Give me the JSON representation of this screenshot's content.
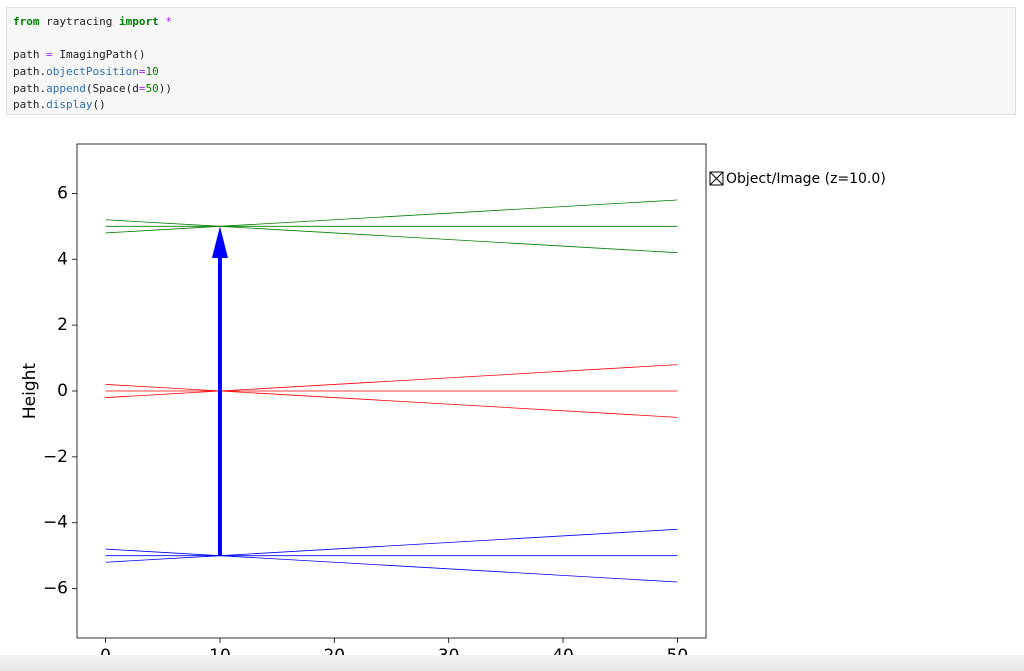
{
  "code_cell": {
    "lines": [
      [
        {
          "t": "from",
          "k": "kw"
        },
        {
          "t": " raytracing ",
          "k": "plain"
        },
        {
          "t": "import",
          "k": "kw"
        },
        {
          "t": " ",
          "k": "plain"
        },
        {
          "t": "*",
          "k": "op"
        }
      ],
      [],
      [
        {
          "t": "path ",
          "k": "plain"
        },
        {
          "t": "=",
          "k": "op"
        },
        {
          "t": " ImagingPath()",
          "k": "plain"
        }
      ],
      [
        {
          "t": "path.",
          "k": "plain"
        },
        {
          "t": "objectPosition",
          "k": "attr"
        },
        {
          "t": "=",
          "k": "op"
        },
        {
          "t": "10",
          "k": "num"
        }
      ],
      [
        {
          "t": "path.",
          "k": "plain"
        },
        {
          "t": "append",
          "k": "attr"
        },
        {
          "t": "(Space(d",
          "k": "plain"
        },
        {
          "t": "=",
          "k": "op"
        },
        {
          "t": "50",
          "k": "num"
        },
        {
          "t": "))",
          "k": "plain"
        }
      ],
      [
        {
          "t": "path.",
          "k": "plain"
        },
        {
          "t": "display",
          "k": "attr"
        },
        {
          "t": "()",
          "k": "plain"
        }
      ]
    ]
  },
  "chart_data": {
    "type": "line",
    "ylabel": "Height",
    "x": [
      0,
      10,
      50
    ],
    "series": [
      {
        "color": "green",
        "values": [
          5.2,
          5,
          4.2
        ]
      },
      {
        "color": "green",
        "values": [
          4.8,
          5,
          5.8
        ]
      },
      {
        "color": "green",
        "values": [
          5,
          5,
          5
        ]
      },
      {
        "color": "red",
        "values": [
          0.2,
          0,
          -0.8
        ]
      },
      {
        "color": "red",
        "values": [
          -0.2,
          0,
          0.8
        ]
      },
      {
        "color": "red",
        "values": [
          0,
          0,
          0
        ]
      },
      {
        "color": "blue",
        "values": [
          -4.8,
          -5,
          -5.8
        ]
      },
      {
        "color": "blue",
        "values": [
          -5.2,
          -5,
          -4.2
        ]
      },
      {
        "color": "blue",
        "values": [
          -5,
          -5,
          -5
        ]
      }
    ],
    "object": {
      "x": 10,
      "y": [
        -5,
        5
      ],
      "color": "blue",
      "label": "Object/Image (z=10.0)"
    },
    "xlim": [
      -2.5,
      52.5
    ],
    "ylim": [
      -7.5,
      7.5
    ],
    "xticks": [
      0,
      10,
      20,
      30,
      40,
      50
    ],
    "yticks": [
      {
        "value": -6,
        "label": "−6"
      },
      {
        "value": -4,
        "label": "−4"
      },
      {
        "value": -2,
        "label": "−2"
      },
      0,
      2,
      4,
      6
    ]
  }
}
